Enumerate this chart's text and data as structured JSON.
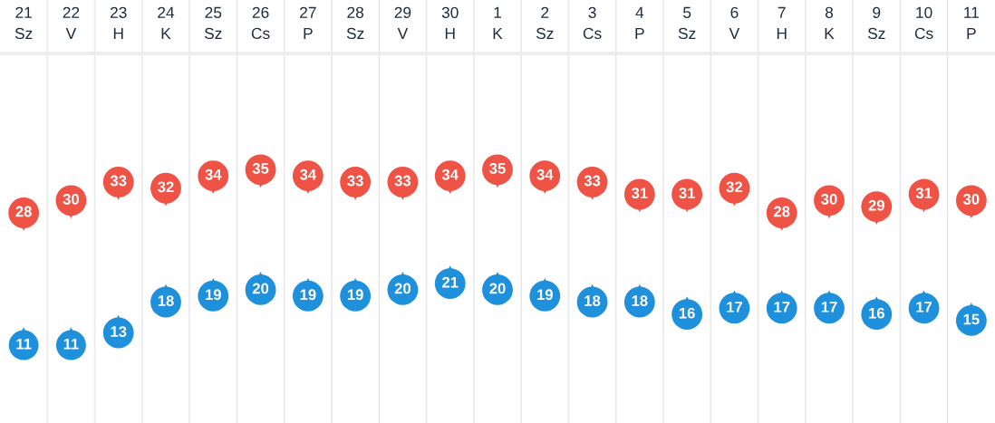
{
  "chart_data": {
    "type": "scatter",
    "categories": [
      "21\nSz",
      "22\nV",
      "23\nH",
      "24\nK",
      "25\nSz",
      "26\nCs",
      "27\nP",
      "28\nSz",
      "29\nV",
      "30\nH",
      "1\nK",
      "2\nSz",
      "3\nCs",
      "4\nP",
      "5\nSz",
      "6\nV",
      "7\nH",
      "8\nK",
      "9\nSz",
      "10\nCs",
      "11\nP"
    ],
    "series": [
      {
        "color": "#ef5345",
        "values": [
          28,
          30,
          33,
          32,
          34,
          35,
          34,
          33,
          33,
          34,
          35,
          34,
          33,
          31,
          31,
          32,
          28,
          30,
          29,
          31,
          30
        ]
      },
      {
        "color": "#1f90db",
        "values": [
          11,
          11,
          13,
          18,
          19,
          20,
          19,
          19,
          20,
          21,
          20,
          19,
          18,
          18,
          16,
          17,
          17,
          17,
          16,
          17,
          15
        ]
      }
    ],
    "marker": "triangle",
    "data_labels": true,
    "grid": "x"
  }
}
